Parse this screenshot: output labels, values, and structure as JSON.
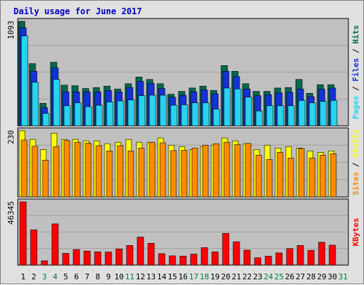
{
  "title": "Daily usage for June 2017",
  "colors": {
    "hits": "#006a4e",
    "files": "#1532d8",
    "pages": "#27d3f0",
    "visits": "#ffff00",
    "sites": "#ff8c00",
    "kbytes": "#ff0000",
    "weekday_label": "#000000",
    "weekend_label": "#008040"
  },
  "chart_data": [
    {
      "type": "bar",
      "name": "hits-files-pages",
      "ylabel_max": "1093",
      "ylim": [
        0,
        1093
      ],
      "legend": [
        "Pages",
        "Files",
        "Hits"
      ],
      "categories": [
        "1",
        "2",
        "3",
        "4",
        "5",
        "6",
        "7",
        "8",
        "9",
        "10",
        "11",
        "12",
        "13",
        "14",
        "15",
        "16",
        "17",
        "18",
        "19",
        "20",
        "21",
        "22",
        "23",
        "24",
        "25",
        "26",
        "27",
        "28",
        "29",
        "30",
        "31"
      ],
      "weekend": [
        false,
        false,
        true,
        true,
        false,
        false,
        false,
        false,
        false,
        false,
        true,
        false,
        false,
        false,
        false,
        false,
        true,
        true,
        false,
        false,
        false,
        false,
        false,
        true,
        true,
        false,
        false,
        false,
        false,
        false,
        true
      ],
      "series": [
        {
          "name": "Hits",
          "values": [
            1093,
            650,
            235,
            665,
            425,
            420,
            390,
            400,
            415,
            385,
            440,
            510,
            485,
            440,
            330,
            360,
            395,
            415,
            370,
            630,
            570,
            440,
            360,
            360,
            395,
            400,
            485,
            340,
            430,
            430,
            null
          ]
        },
        {
          "name": "Files",
          "values": [
            1025,
            570,
            190,
            605,
            355,
            355,
            355,
            355,
            370,
            355,
            400,
            465,
            445,
            390,
            300,
            320,
            355,
            375,
            335,
            570,
            515,
            385,
            315,
            325,
            345,
            350,
            385,
            305,
            385,
            395,
            null
          ]
        },
        {
          "name": "Pages",
          "values": [
            940,
            455,
            130,
            485,
            210,
            240,
            200,
            215,
            250,
            260,
            270,
            315,
            320,
            320,
            215,
            220,
            240,
            240,
            175,
            395,
            385,
            300,
            155,
            210,
            210,
            210,
            265,
            240,
            255,
            265,
            null
          ]
        }
      ]
    },
    {
      "type": "bar",
      "name": "visits-sites",
      "ylabel_max": "230",
      "ylim": [
        0,
        230
      ],
      "legend": [
        "Sites",
        "Visits"
      ],
      "series": [
        {
          "name": "Visits",
          "values": [
            230,
            200,
            165,
            222,
            200,
            200,
            195,
            195,
            185,
            190,
            200,
            190,
            190,
            205,
            180,
            175,
            165,
            175,
            180,
            205,
            195,
            185,
            165,
            180,
            170,
            175,
            170,
            160,
            155,
            160,
            null
          ]
        },
        {
          "name": "Sites",
          "values": [
            198,
            176,
            128,
            175,
            196,
            190,
            187,
            178,
            160,
            178,
            160,
            170,
            190,
            188,
            161,
            162,
            170,
            180,
            185,
            190,
            182,
            186,
            145,
            130,
            155,
            135,
            168,
            135,
            145,
            150,
            null
          ]
        }
      ]
    },
    {
      "type": "bar",
      "name": "kbytes",
      "ylabel_max": "46345",
      "ylim": [
        0,
        46345
      ],
      "legend": [
        "KBytes"
      ],
      "series": [
        {
          "name": "KBytes",
          "values": [
            46345,
            25800,
            3150,
            30230,
            8620,
            11400,
            10270,
            9700,
            9600,
            11850,
            14400,
            20500,
            16000,
            8400,
            6800,
            6600,
            8040,
            12800,
            9650,
            23200,
            17100,
            10950,
            5400,
            6600,
            8950,
            12120,
            14430,
            10850,
            16750,
            14600,
            null
          ]
        }
      ]
    }
  ]
}
